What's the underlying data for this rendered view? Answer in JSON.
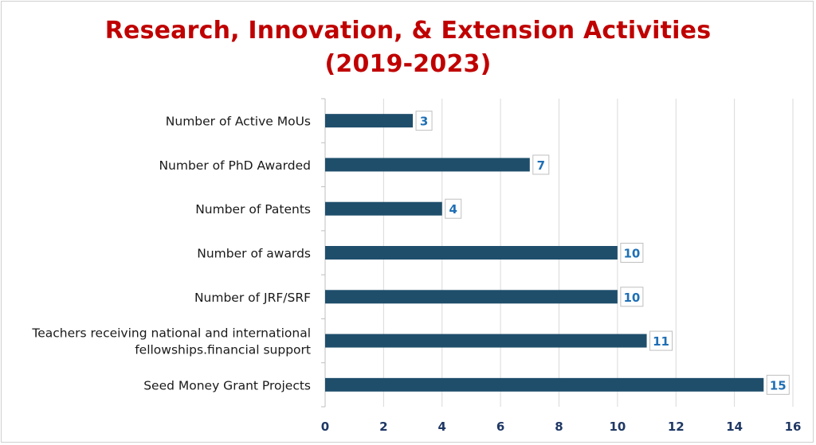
{
  "chart_data": {
    "type": "bar",
    "orientation": "horizontal",
    "title_line1": "Research, Innovation, & Extension Activities",
    "title_line2": "(2019-2023)",
    "categories": [
      [
        "Number of Active MoUs"
      ],
      [
        "Number of PhD Awarded"
      ],
      [
        "Number of Patents"
      ],
      [
        "Number of awards"
      ],
      [
        "Number of JRF/SRF"
      ],
      [
        "Teachers receiving national and international",
        "fellowships.financial support"
      ],
      [
        "Seed Money Grant Projects"
      ]
    ],
    "values": [
      3,
      7,
      4,
      10,
      10,
      11,
      15
    ],
    "xlim": [
      0,
      16
    ],
    "xticks": [
      0,
      2,
      4,
      6,
      8,
      10,
      12,
      14,
      16
    ],
    "grid": true,
    "bar_color": "#1f4e6b",
    "label_color": "#1f6fb4",
    "title_color": "#c00000",
    "tick_color": "#1f3864"
  }
}
